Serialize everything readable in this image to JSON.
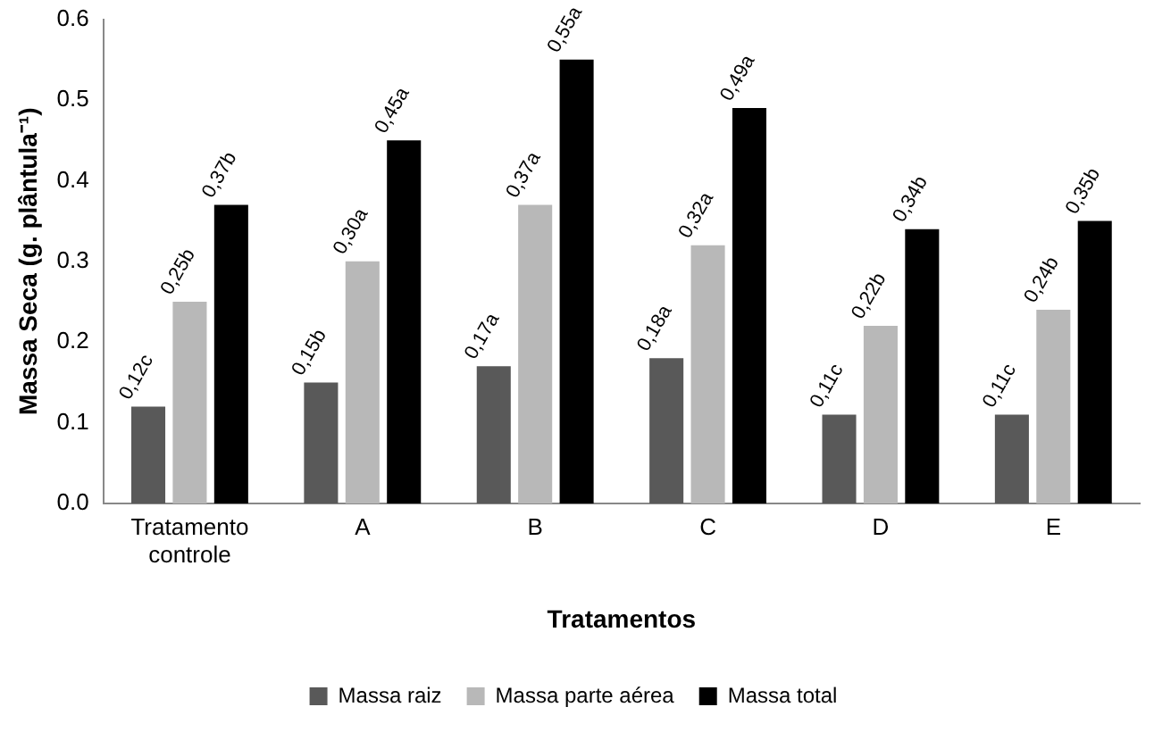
{
  "chart_data": {
    "type": "bar",
    "xlabel": "Tratamentos",
    "ylabel": "Massa Seca (g. plântula⁻¹)",
    "categories": [
      "Tratamento controle",
      "A",
      "B",
      "C",
      "D",
      "E"
    ],
    "series": [
      {
        "name": "Massa raiz",
        "color": "#595959",
        "values": [
          0.12,
          0.15,
          0.17,
          0.18,
          0.11,
          0.11
        ],
        "value_labels": [
          "0,12c",
          "0,15b",
          "0,17a",
          "0,18a",
          "0,11c",
          "0,11c"
        ]
      },
      {
        "name": "Massa parte aérea",
        "color": "#b8b8b8",
        "values": [
          0.25,
          0.3,
          0.37,
          0.32,
          0.22,
          0.24
        ],
        "value_labels": [
          "0,25b",
          "0,30a",
          "0,37a",
          "0,32a",
          "0,22b",
          "0,24b"
        ]
      },
      {
        "name": "Massa total",
        "color": "#000000",
        "values": [
          0.37,
          0.45,
          0.55,
          0.49,
          0.34,
          0.35
        ],
        "value_labels": [
          "0,37b",
          "0,45a",
          "0,55a",
          "0,49a",
          "0,34b",
          "0,35b"
        ]
      }
    ],
    "ylim": [
      0,
      0.6
    ],
    "yticks": [
      {
        "value": 0,
        "label": "0.0"
      },
      {
        "value": 0.1,
        "label": "0.1"
      },
      {
        "value": 0.2,
        "label": "0.2"
      },
      {
        "value": 0.3,
        "label": "0.3"
      },
      {
        "value": 0.4,
        "label": "0.4"
      },
      {
        "value": 0.5,
        "label": "0.5"
      },
      {
        "value": 0.6,
        "label": "0.6"
      }
    ],
    "grid": false,
    "legend": "bottom"
  }
}
